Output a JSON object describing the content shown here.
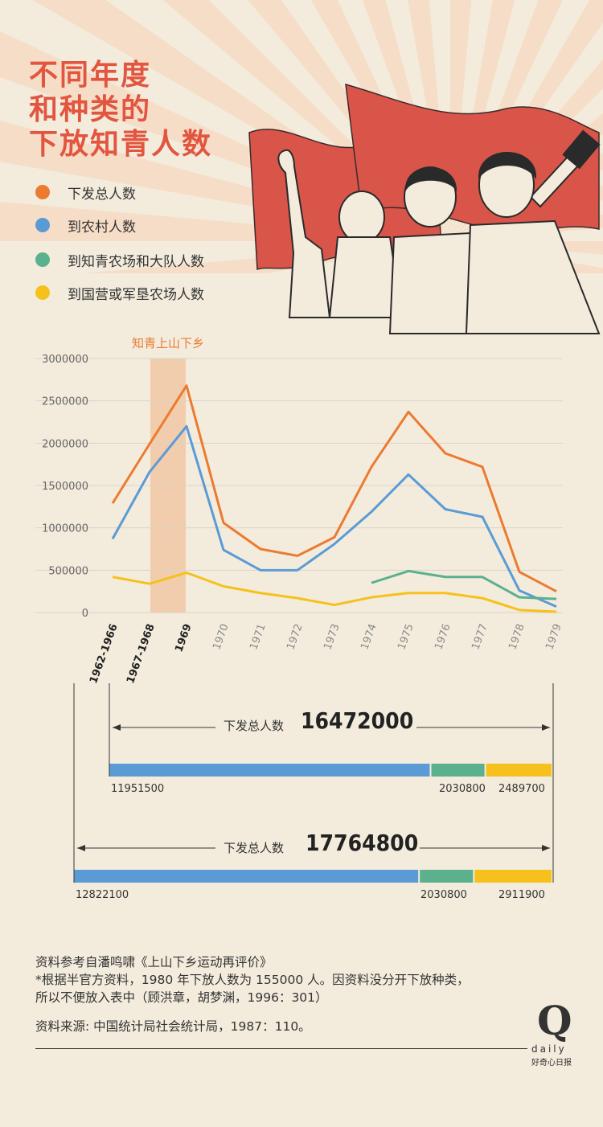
{
  "title": {
    "line1": "不同年度",
    "line2": "和种类的",
    "line3": "下放知青人数"
  },
  "colors": {
    "total": "#ec7a30",
    "rural": "#5b9bd5",
    "farm": "#5bb08d",
    "state": "#f6c11c",
    "highlight": "#f0c8a4",
    "title": "#e2553f"
  },
  "legend": [
    {
      "label": "下发总人数",
      "color": "#ec7a30"
    },
    {
      "label": "到农村人数",
      "color": "#5b9bd5"
    },
    {
      "label": "到知青农场和大队人数",
      "color": "#5bb08d"
    },
    {
      "label": "到国营或军垦农场人数",
      "color": "#f6c11c"
    }
  ],
  "chart_data": {
    "type": "line",
    "categories": [
      "1962-1966",
      "1967-1968",
      "1969",
      "1970",
      "1971",
      "1972",
      "1973",
      "1974",
      "1975",
      "1976",
      "1977",
      "1978",
      "1979"
    ],
    "highlight": {
      "label": "知青上山下乡",
      "category": "1967-1968"
    },
    "ylim": [
      0,
      3000000
    ],
    "yticks": [
      "3000000",
      "2500000",
      "2000000",
      "1500000",
      "1000000",
      "500000",
      "0"
    ],
    "series": [
      {
        "name": "下发总人数",
        "color": "#ec7a30",
        "values": [
          1290000,
          1990000,
          2680000,
          1060000,
          750000,
          670000,
          890000,
          1720000,
          2370000,
          1880000,
          1720000,
          480000,
          250000
        ]
      },
      {
        "name": "到农村人数",
        "color": "#5b9bd5",
        "values": [
          870000,
          1660000,
          2200000,
          740000,
          500000,
          500000,
          810000,
          1190000,
          1630000,
          1220000,
          1130000,
          260000,
          70000
        ]
      },
      {
        "name": "到知青农场和大队人数",
        "color": "#5bb08d",
        "values": [
          null,
          null,
          null,
          null,
          null,
          null,
          null,
          350000,
          490000,
          420000,
          420000,
          180000,
          160000
        ]
      },
      {
        "name": "到国营或军垦农场人数",
        "color": "#f6c11c",
        "values": [
          420000,
          340000,
          470000,
          310000,
          230000,
          170000,
          90000,
          180000,
          230000,
          230000,
          170000,
          30000,
          10000
        ]
      }
    ]
  },
  "totals": [
    {
      "label": "下发总人数",
      "total": "16472000",
      "parts": [
        {
          "value": "11951500",
          "amount": 11951500,
          "color": "#5b9bd5"
        },
        {
          "value": "2030800",
          "amount": 2030800,
          "color": "#5bb08d"
        },
        {
          "value": "2489700",
          "amount": 2489700,
          "color": "#f6c11c"
        }
      ]
    },
    {
      "label": "下发总人数",
      "total": "17764800",
      "parts": [
        {
          "value": "12822100",
          "amount": 12822100,
          "color": "#5b9bd5"
        },
        {
          "value": "2030800",
          "amount": 2030800,
          "color": "#5bb08d"
        },
        {
          "value": "2911900",
          "amount": 2911900,
          "color": "#f6c11c"
        }
      ]
    }
  ],
  "notes": {
    "line1": "资料参考自潘鸣啸《上山下乡运动再评价》",
    "line2": "*根据半官方资料，1980 年下放人数为 155000 人。因资料没分开下放种类，",
    "line3": "所以不便放入表中（顾洪章，胡梦渊，1996：301）",
    "line4": "资料来源: 中国统计局社会统计局，1987：110。"
  },
  "logo": {
    "mark": "Q",
    "word": "daily",
    "cn": "好奇心日报"
  }
}
